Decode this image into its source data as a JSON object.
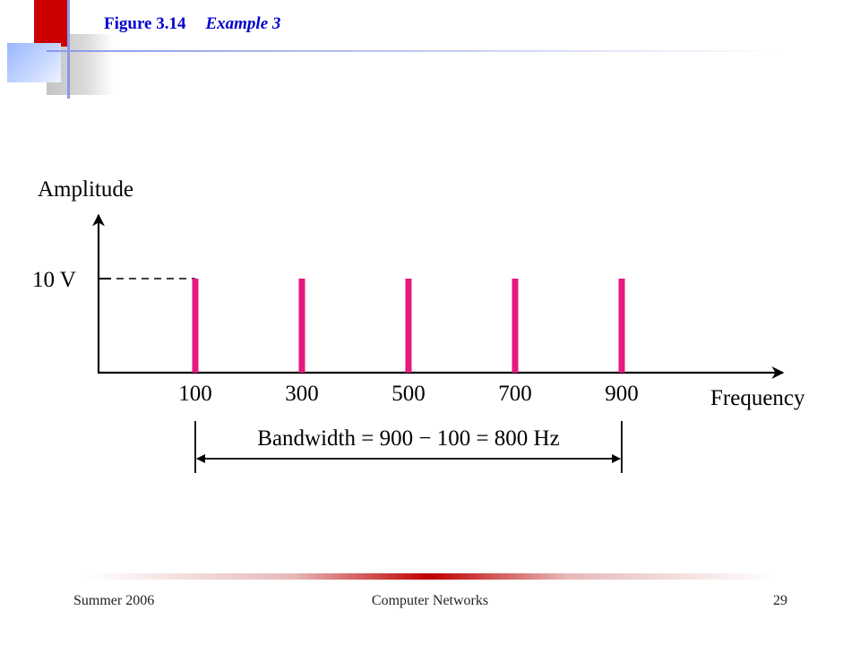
{
  "slide": {
    "title_number": "Figure 3.14",
    "title_caption": "Example 3",
    "footer_left": "Summer 2006",
    "footer_center": "Computer Networks",
    "footer_right": "29",
    "colors": {
      "title": "#0000cc",
      "accent_red": "#cc0000",
      "accent_blue": "#8a9ae8",
      "bar": "#e6197e"
    }
  },
  "chart_data": {
    "type": "bar",
    "ylabel": "Amplitude",
    "xlabel": "Frequency",
    "categories": [
      "100",
      "300",
      "500",
      "700",
      "900"
    ],
    "x": [
      100,
      300,
      500,
      700,
      900
    ],
    "values": [
      10,
      10,
      10,
      10,
      10
    ],
    "y_tick_label": "10 V",
    "annotation": "Bandwidth = 900 − 100 = 800 Hz",
    "grid": false
  }
}
